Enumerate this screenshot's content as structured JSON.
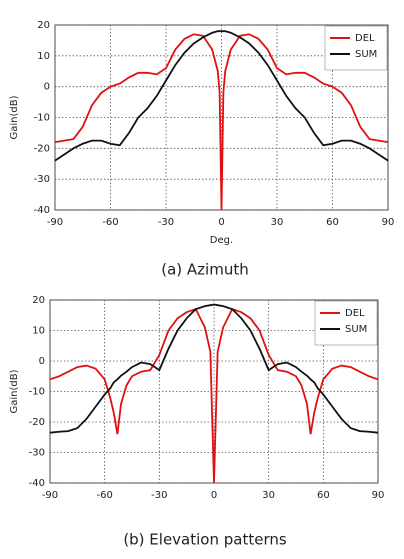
{
  "chart_data": [
    {
      "type": "line",
      "caption": "(a)  Azimuth",
      "xlabel": "Deg.",
      "ylabel": "Gain(dB)",
      "x": [
        -90,
        -85,
        -80,
        -75,
        -70,
        -65,
        -60,
        -55,
        -50,
        -45,
        -40,
        -35,
        -30,
        -25,
        -20,
        -15,
        -10,
        -5,
        -2,
        -1,
        0,
        1,
        2,
        5,
        10,
        15,
        20,
        25,
        30,
        35,
        40,
        45,
        50,
        55,
        60,
        65,
        70,
        75,
        80,
        85,
        90
      ],
      "series": [
        {
          "name": "DEL",
          "color": "#e01010",
          "values": [
            -18,
            -17.5,
            -17,
            -13,
            -6,
            -2,
            0,
            1,
            3,
            4.5,
            4.5,
            4,
            6,
            12,
            15.5,
            17,
            16.5,
            12,
            5,
            -2,
            -40,
            -2,
            5,
            12,
            16.5,
            17,
            15.5,
            12,
            6,
            4,
            4.5,
            4.5,
            3,
            1,
            0,
            -2,
            -6,
            -13,
            -17,
            -17.5,
            -18
          ]
        },
        {
          "name": "SUM",
          "color": "#111111",
          "values": [
            -24,
            -22,
            -20,
            -18.5,
            -17.5,
            -17.5,
            -18.5,
            -19,
            -15,
            -10,
            -7,
            -3,
            2,
            7,
            11,
            14,
            16,
            17.5,
            18,
            18,
            18,
            18,
            18,
            17.5,
            16,
            14,
            11,
            7,
            2,
            -3,
            -7,
            -10,
            -15,
            -19,
            -18.5,
            -17.5,
            -17.5,
            -18.5,
            -20,
            -22,
            -24
          ]
        }
      ],
      "xlim": [
        -90,
        90
      ],
      "ylim": [
        -40,
        20
      ],
      "xticks": [
        -90,
        -60,
        -30,
        0,
        30,
        60,
        90
      ],
      "yticks": [
        -40,
        -30,
        -20,
        -10,
        0,
        10,
        20
      ],
      "grid": true,
      "legend": "upper right"
    },
    {
      "type": "line",
      "caption": "(b) Elevation patterns",
      "ylabel": "Gain(dB)",
      "x": [
        -90,
        -85,
        -80,
        -75,
        -70,
        -65,
        -60,
        -57,
        -55,
        -53,
        -51,
        -48,
        -45,
        -40,
        -35,
        -30,
        -25,
        -20,
        -15,
        -10,
        -5,
        -2,
        0,
        2,
        5,
        10,
        15,
        20,
        25,
        30,
        35,
        40,
        45,
        48,
        51,
        53,
        55,
        57,
        60,
        65,
        70,
        75,
        80,
        85,
        90
      ],
      "series": [
        {
          "name": "DEL",
          "color": "#e01010",
          "values": [
            -6,
            -5,
            -3.5,
            -2,
            -1.5,
            -2.5,
            -6,
            -12,
            -17,
            -24,
            -14,
            -8,
            -5,
            -3.5,
            -3,
            2,
            10,
            14,
            16,
            17,
            11,
            3,
            -40,
            3,
            11,
            17,
            16,
            14,
            10,
            2,
            -3,
            -3.5,
            -5,
            -8,
            -14,
            -24,
            -17,
            -12,
            -6,
            -2.5,
            -1.5,
            -2,
            -3.5,
            -5,
            -6
          ]
        },
        {
          "name": "SUM",
          "color": "#111111",
          "values": [
            -23.5,
            -23.2,
            -23,
            -22,
            -19,
            -15,
            -11,
            -9,
            -7,
            -6,
            -4.8,
            -3.5,
            -2,
            -0.5,
            -1,
            -3,
            4,
            10,
            14,
            17,
            18,
            18.3,
            18.5,
            18.3,
            18,
            17,
            14,
            10,
            4,
            -3,
            -1,
            -0.5,
            -2,
            -3.5,
            -4.8,
            -6,
            -7,
            -9,
            -11,
            -15,
            -19,
            -22,
            -23,
            -23.2,
            -23.5
          ]
        }
      ],
      "xlim": [
        -90,
        90
      ],
      "ylim": [
        -40,
        20
      ],
      "xticks": [
        -90,
        -60,
        -30,
        0,
        30,
        60,
        90
      ],
      "yticks": [
        -40,
        -30,
        -20,
        -10,
        0,
        10,
        20
      ],
      "grid": true,
      "legend": "upper right"
    }
  ]
}
